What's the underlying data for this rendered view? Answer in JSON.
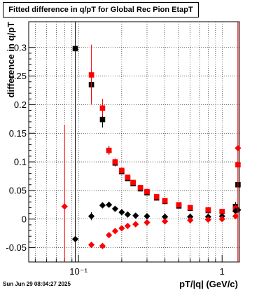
{
  "chart_data": {
    "type": "scatter",
    "title": "Fitted difference in q/pT for Global Rec Pion EtapT",
    "xlabel": "pT/|q| (GeV/c)",
    "ylabel": "difference in q/pT",
    "xscale": "log",
    "xlim": [
      0.045,
      1.32
    ],
    "ylim": [
      -0.075,
      0.345
    ],
    "x_ticks": [
      {
        "value": 0.1,
        "label": "10⁻¹"
      },
      {
        "value": 1,
        "label": "1"
      }
    ],
    "y_ticks": [
      -0.05,
      0,
      0.05,
      0.1,
      0.15,
      0.2,
      0.25,
      0.3
    ],
    "grid": true,
    "series": [
      {
        "marker": "square",
        "color": "#000000",
        "points": [
          [
            0.095,
            0.298,
            0.004,
            0.345,
            -0.075
          ],
          [
            0.123,
            0.235,
            0.004,
            0.26,
            0.205
          ],
          [
            0.147,
            0.174,
            0.005,
            0.19,
            0.16
          ],
          [
            0.163,
            0.12,
            0.005,
            0.128,
            0.113
          ],
          [
            0.18,
            0.098,
            0.005,
            0.104,
            0.092
          ],
          [
            0.2,
            0.083,
            0.005,
            0.088,
            0.078
          ],
          [
            0.22,
            0.071,
            0.005,
            0.075,
            0.067
          ],
          [
            0.24,
            0.062,
            0.006,
            0.065,
            0.059
          ],
          [
            0.27,
            0.053,
            0.006,
            0.056,
            0.05
          ],
          [
            0.3,
            0.046,
            0.007,
            0.049,
            0.043
          ],
          [
            0.35,
            0.037,
            0.008,
            0.04,
            0.034
          ],
          [
            0.4,
            0.031,
            0.009,
            0.034,
            0.028
          ],
          [
            0.5,
            0.023,
            0.01,
            0.026,
            0.02
          ],
          [
            0.6,
            0.019,
            0.012,
            0.022,
            0.016
          ],
          [
            0.8,
            0.015,
            0.015,
            0.018,
            0.012
          ],
          [
            1.0,
            0.013,
            0.02,
            0.017,
            0.009
          ],
          [
            1.24,
            0.022,
            0.02,
            0.03,
            0.0
          ],
          [
            1.29,
            0.06,
            0.015,
            0.345,
            -0.075
          ]
        ]
      },
      {
        "marker": "square",
        "color": "#ff0000",
        "points": [
          [
            0.123,
            0.252,
            0.004,
            0.305,
            0.2
          ],
          [
            0.147,
            0.194,
            0.005,
            0.21,
            0.18
          ],
          [
            0.163,
            0.12,
            0.005,
            0.128,
            0.112
          ],
          [
            0.18,
            0.1,
            0.005,
            0.106,
            0.094
          ],
          [
            0.2,
            0.085,
            0.005,
            0.09,
            0.08
          ],
          [
            0.22,
            0.073,
            0.005,
            0.077,
            0.069
          ],
          [
            0.24,
            0.064,
            0.006,
            0.067,
            0.061
          ],
          [
            0.27,
            0.055,
            0.006,
            0.058,
            0.052
          ],
          [
            0.3,
            0.048,
            0.007,
            0.051,
            0.045
          ],
          [
            0.35,
            0.039,
            0.008,
            0.042,
            0.036
          ],
          [
            0.4,
            0.032,
            0.009,
            0.035,
            0.029
          ],
          [
            0.5,
            0.025,
            0.01,
            0.028,
            0.022
          ],
          [
            0.6,
            0.02,
            0.012,
            0.023,
            0.017
          ],
          [
            0.8,
            0.016,
            0.015,
            0.019,
            0.013
          ],
          [
            1.0,
            0.013,
            0.02,
            0.017,
            0.009
          ],
          [
            1.24,
            0.018,
            0.02,
            0.025,
            0.0
          ],
          [
            1.29,
            0.095,
            0.015,
            0.345,
            -0.075
          ]
        ]
      },
      {
        "marker": "diamond",
        "color": "#000000",
        "points": [
          [
            0.095,
            -0.035,
            0.004,
            -0.033,
            -0.037
          ],
          [
            0.123,
            0.005,
            0.004,
            0.012,
            -0.002
          ],
          [
            0.147,
            0.024,
            0.005,
            0.028,
            0.02
          ],
          [
            0.163,
            0.025,
            0.005,
            0.028,
            0.022
          ],
          [
            0.18,
            0.018,
            0.005,
            0.021,
            0.015
          ],
          [
            0.2,
            0.012,
            0.005,
            0.014,
            0.01
          ],
          [
            0.22,
            0.008,
            0.005,
            0.01,
            0.006
          ],
          [
            0.25,
            0.006,
            0.006,
            0.008,
            0.004
          ],
          [
            0.3,
            0.005,
            0.007,
            0.007,
            0.003
          ],
          [
            0.4,
            0.004,
            0.009,
            0.006,
            0.002
          ],
          [
            0.6,
            0.004,
            0.012,
            0.006,
            0.002
          ],
          [
            0.8,
            0.004,
            0.015,
            0.006,
            0.002
          ],
          [
            1.0,
            0.005,
            0.02,
            0.008,
            0.002
          ],
          [
            1.24,
            0.014,
            0.02,
            0.02,
            0.0
          ],
          [
            1.29,
            0.016,
            0.015,
            0.345,
            -0.075
          ]
        ]
      },
      {
        "marker": "diamond",
        "color": "#ff0000",
        "points": [
          [
            0.08,
            0.022,
            0.004,
            0.165,
            -0.075
          ],
          [
            0.123,
            -0.045,
            0.004,
            -0.04,
            -0.05
          ],
          [
            0.147,
            -0.047,
            0.005,
            -0.042,
            -0.052
          ],
          [
            0.163,
            -0.028,
            0.005,
            -0.025,
            -0.031
          ],
          [
            0.18,
            -0.021,
            0.005,
            -0.018,
            -0.024
          ],
          [
            0.2,
            -0.016,
            0.005,
            -0.014,
            -0.018
          ],
          [
            0.22,
            -0.012,
            0.005,
            -0.01,
            -0.014
          ],
          [
            0.25,
            -0.009,
            0.006,
            -0.007,
            -0.011
          ],
          [
            0.3,
            -0.006,
            0.007,
            -0.004,
            -0.008
          ],
          [
            0.4,
            -0.004,
            0.009,
            -0.002,
            -0.006
          ],
          [
            0.6,
            -0.002,
            0.012,
            0.0,
            -0.004
          ],
          [
            0.8,
            -0.001,
            0.015,
            0.001,
            -0.003
          ],
          [
            1.0,
            0.0,
            0.02,
            0.002,
            -0.002
          ],
          [
            1.24,
            0.005,
            0.02,
            0.01,
            0.0
          ],
          [
            1.29,
            0.124,
            0.015,
            0.345,
            -0.075
          ]
        ]
      }
    ]
  },
  "footer": "Sun Jun 29 08:04:27 2025"
}
